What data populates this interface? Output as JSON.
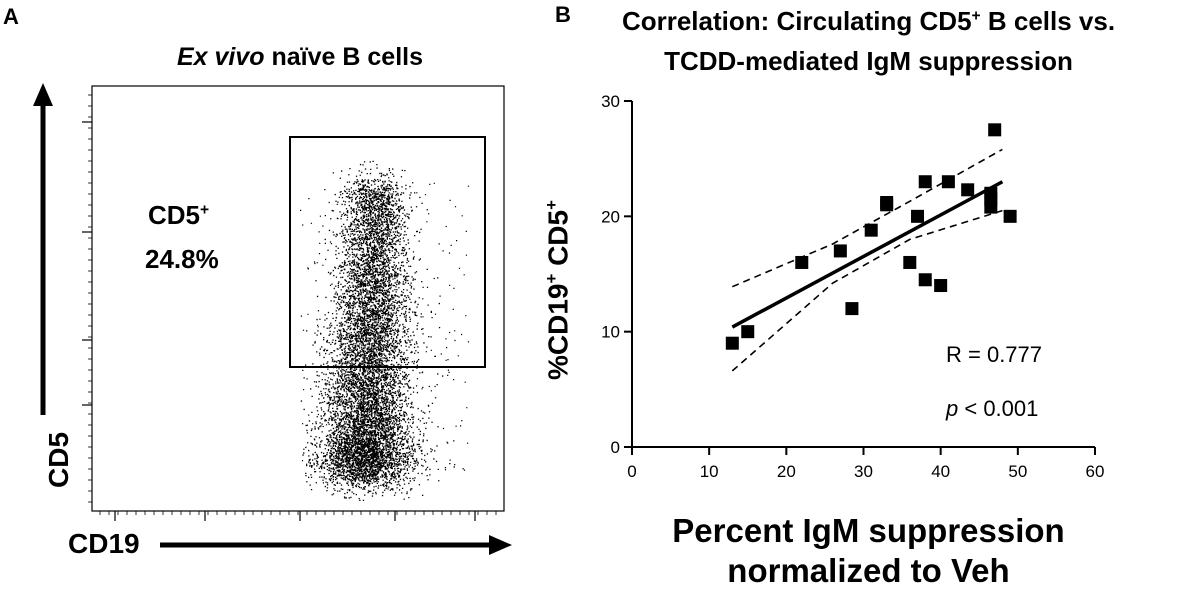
{
  "panel_a": {
    "letter": "A",
    "title_italic": "Ex vivo",
    "title_rest": " naïve B cells",
    "gate": {
      "name_base": "CD5",
      "name_sup": "+",
      "percent": "24.8%"
    },
    "x_axis_label": "CD19",
    "y_axis_label": "CD5"
  },
  "panel_b": {
    "letter": "B",
    "annotation_r": "R = 0.777",
    "annotation_p_italic": "p",
    "annotation_p_rest": " < 0.001"
  },
  "chart_data": [
    {
      "type": "scatter",
      "description_kind": "flow-cytometry-density",
      "title": "Ex vivo naïve B cells",
      "xlabel": "CD19",
      "ylabel": "CD5",
      "gate": {
        "label": "CD5+",
        "value_percent": 24.8
      }
    },
    {
      "type": "scatter",
      "title_line1": "Correlation: Circulating CD5+ B cells vs.",
      "title_line2": "TCDD-mediated IgM suppression",
      "xlabel_line1": "Percent IgM suppression",
      "xlabel_line2": "normalized to Veh",
      "ylabel": "%CD19+ CD5+",
      "xlim": [
        0,
        60
      ],
      "ylim": [
        0,
        30
      ],
      "x_ticks": [
        0,
        10,
        20,
        30,
        40,
        50,
        60
      ],
      "y_ticks": [
        0,
        10,
        20,
        30
      ],
      "points": [
        [
          13,
          9
        ],
        [
          15,
          10
        ],
        [
          22,
          16
        ],
        [
          27,
          17
        ],
        [
          28.5,
          12
        ],
        [
          31,
          18.8
        ],
        [
          33,
          21
        ],
        [
          33,
          21.2
        ],
        [
          36,
          16
        ],
        [
          37,
          20
        ],
        [
          38,
          23
        ],
        [
          38,
          14.5
        ],
        [
          40,
          14
        ],
        [
          41,
          23
        ],
        [
          43.5,
          22.3
        ],
        [
          46.5,
          22
        ],
        [
          46.5,
          21.5
        ],
        [
          46.5,
          20.8
        ],
        [
          47,
          27.5
        ],
        [
          49,
          20
        ]
      ],
      "regression": {
        "x": [
          13,
          48
        ],
        "y": [
          10.4,
          23.0
        ]
      },
      "ci_upper": {
        "x": [
          13,
          26,
          36,
          48
        ],
        "y": [
          13.9,
          17.6,
          21.3,
          25.8
        ]
      },
      "ci_lower": {
        "x": [
          13,
          26,
          36,
          48
        ],
        "y": [
          6.6,
          14.2,
          18.0,
          20.5
        ]
      },
      "annotations": [
        "R = 0.777",
        "p < 0.001"
      ]
    }
  ]
}
